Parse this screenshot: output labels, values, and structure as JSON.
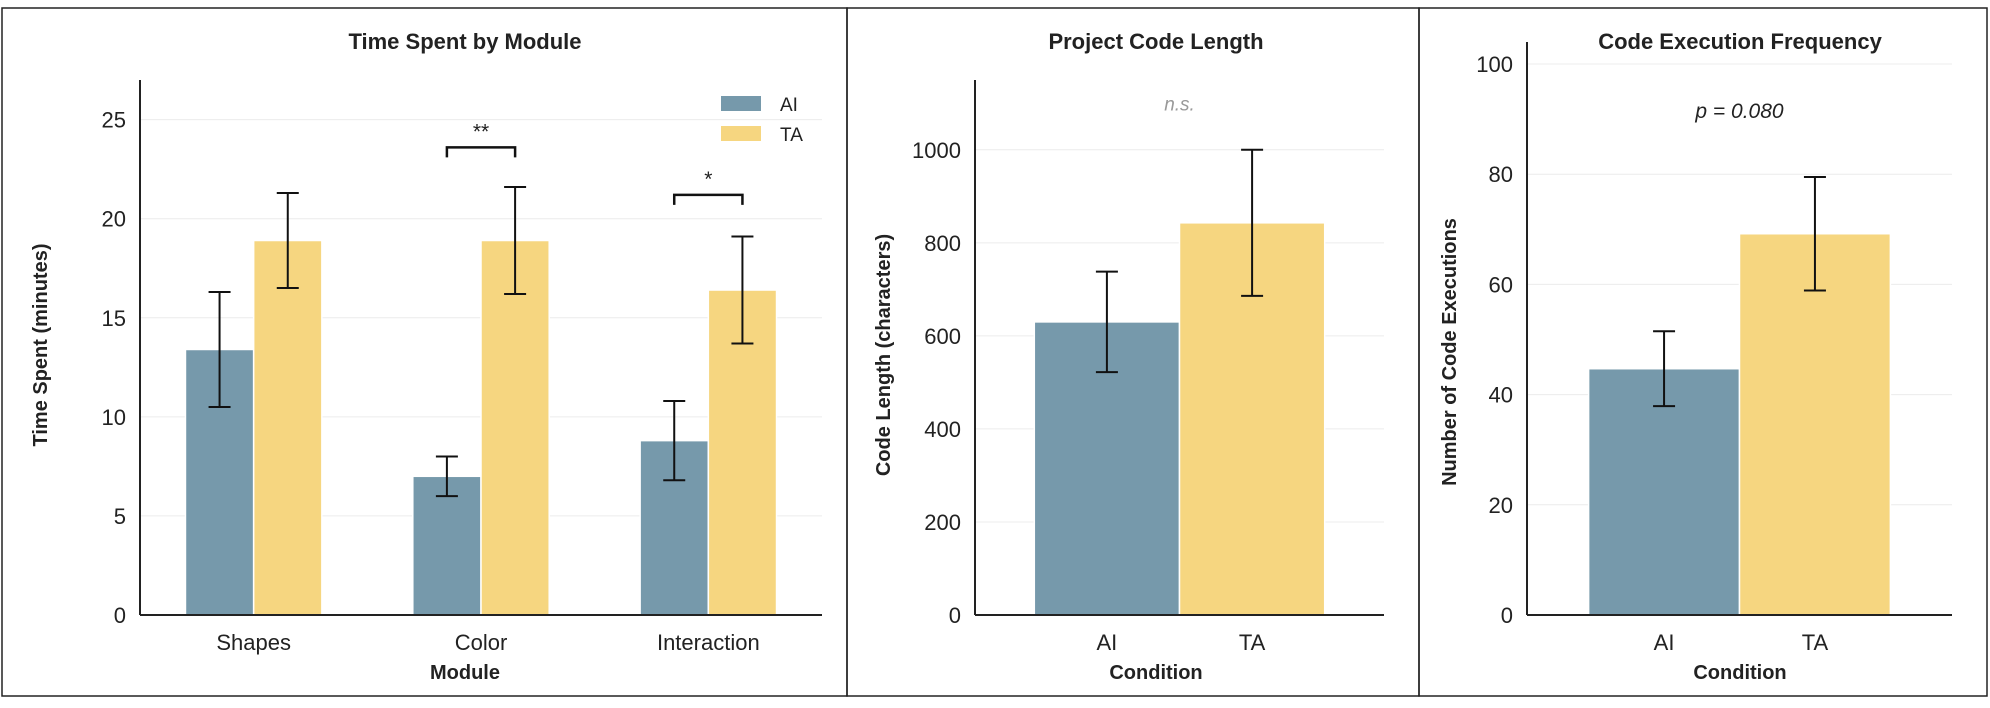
{
  "colors": {
    "AI": "#7699ab",
    "TA": "#f6d680",
    "grid": "#ececec",
    "axis": "#222222",
    "ns_text": "#999999"
  },
  "chart_data": [
    {
      "type": "bar",
      "title": "Time Spent by Module",
      "xlabel": "Module",
      "ylabel": "Time Spent (minutes)",
      "ylim": [
        0,
        27
      ],
      "yticks": [
        0,
        5,
        10,
        15,
        20,
        25
      ],
      "categories": [
        "Shapes",
        "Color",
        "Interaction"
      ],
      "series": [
        {
          "name": "AI",
          "values": [
            13.4,
            7.0,
            8.8
          ],
          "errors": [
            2.9,
            1.0,
            2.0
          ]
        },
        {
          "name": "TA",
          "values": [
            18.9,
            18.9,
            16.4
          ],
          "errors": [
            2.4,
            2.7,
            2.7
          ]
        }
      ],
      "legend": {
        "position": "top-right",
        "entries": [
          "AI",
          "TA"
        ]
      },
      "annotations": [
        {
          "category": "Color",
          "text": "**",
          "y": 23.6
        },
        {
          "category": "Interaction",
          "text": "*",
          "y": 21.2
        }
      ]
    },
    {
      "type": "bar",
      "title": "Project Code Length",
      "xlabel": "Condition",
      "ylabel": "Code Length (characters)",
      "ylim": [
        0,
        1150
      ],
      "yticks": [
        0,
        200,
        400,
        600,
        800,
        1000
      ],
      "categories": [
        "AI",
        "TA"
      ],
      "values": [
        630,
        843
      ],
      "errors": [
        108,
        157
      ],
      "annotation": {
        "text": "n.s.",
        "y": 1100
      }
    },
    {
      "type": "bar",
      "title": "Code Execution Frequency",
      "xlabel": "Condition",
      "ylabel": "Number of Code Executions",
      "ylim": [
        0,
        104
      ],
      "yticks": [
        0,
        20,
        40,
        60,
        80,
        100
      ],
      "categories": [
        "AI",
        "TA"
      ],
      "values": [
        44.7,
        69.2
      ],
      "errors": [
        6.8,
        10.3
      ],
      "annotation": {
        "text": "p = 0.080",
        "y": 91.5
      }
    }
  ]
}
